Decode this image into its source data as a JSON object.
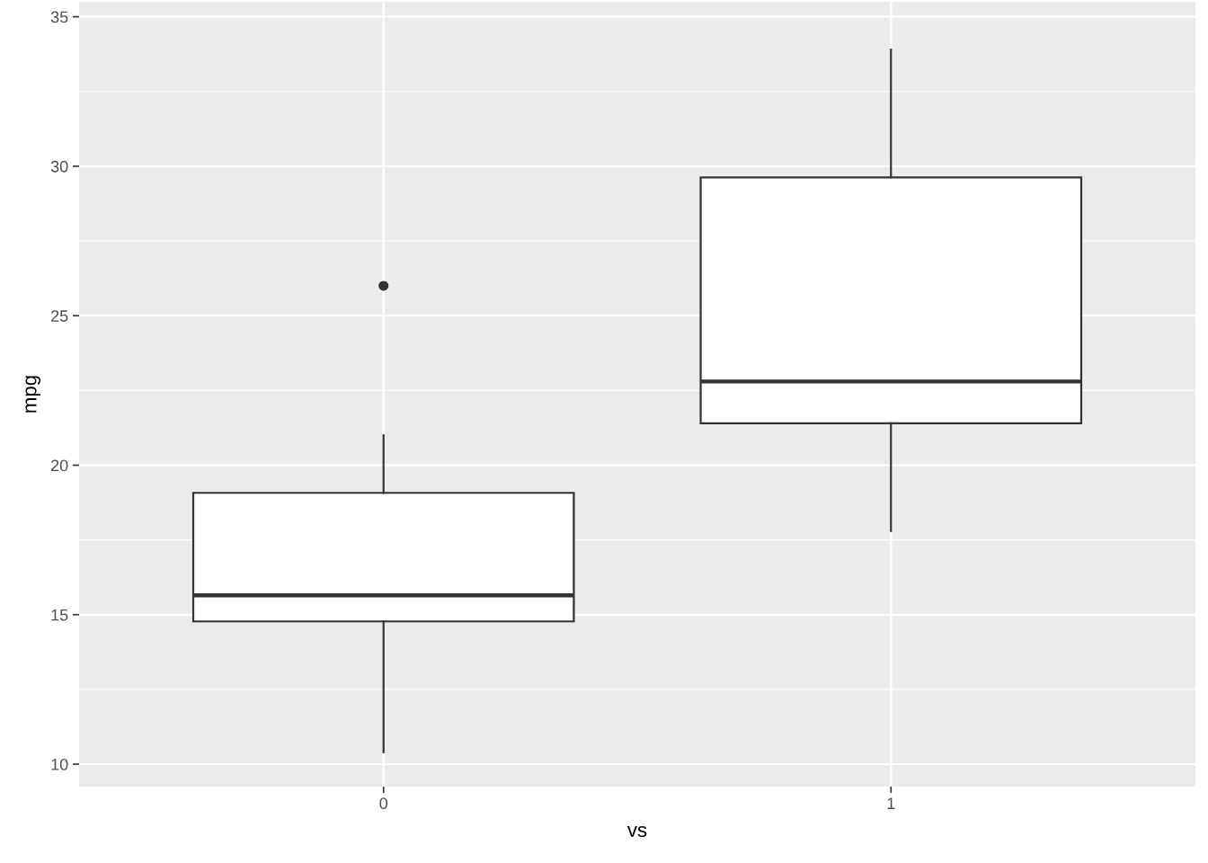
{
  "chart_data": {
    "type": "box",
    "xlabel": "vs",
    "ylabel": "mpg",
    "categories": [
      "0",
      "1"
    ],
    "boxes": [
      {
        "low": 10.4,
        "q1": 14.775,
        "median": 15.65,
        "q3": 19.075,
        "high": 21.0,
        "outliers": [
          26.0
        ]
      },
      {
        "low": 17.8,
        "q1": 21.4,
        "median": 22.8,
        "q3": 29.625,
        "high": 33.9
      }
    ],
    "ylim": [
      9.25,
      35.5
    ],
    "yticks": [
      10,
      15,
      20,
      25,
      30,
      35
    ],
    "grid": true
  }
}
